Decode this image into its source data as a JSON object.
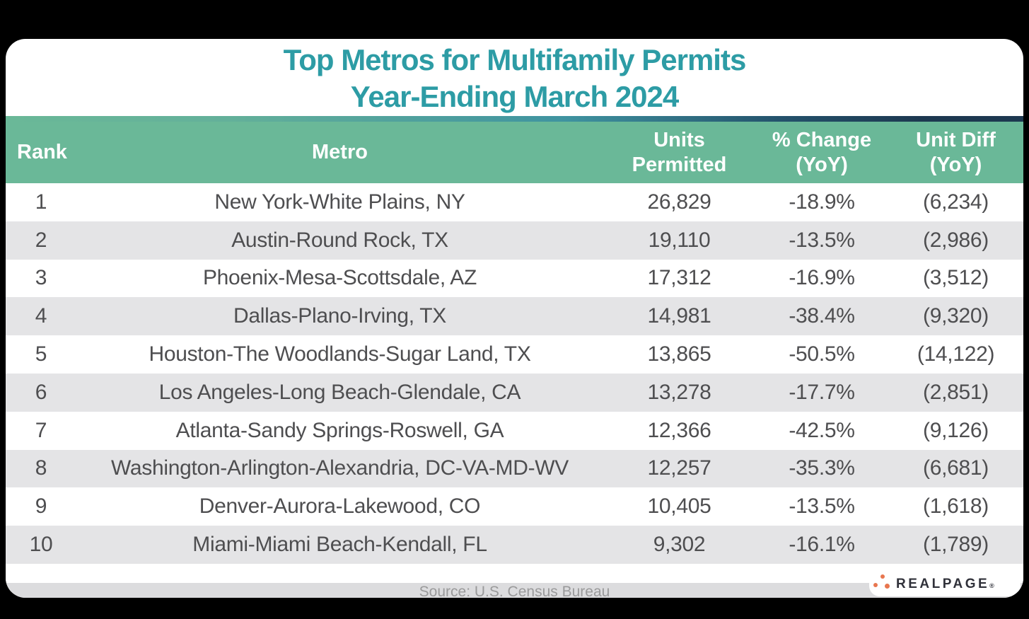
{
  "title": {
    "line1": "Top Metros for Multifamily Permits",
    "line2": "Year-Ending March 2024"
  },
  "table": {
    "header": {
      "rank": "Rank",
      "metro": "Metro",
      "units_line1": "Units",
      "units_line2": "Permitted",
      "change_line1": "% Change",
      "change_line2": "(YoY)",
      "diff_line1": "Unit Diff",
      "diff_line2": "(YoY)"
    },
    "rows": [
      {
        "rank": "1",
        "metro": "New York-White Plains, NY",
        "units": "26,829",
        "change": "-18.9%",
        "diff": "(6,234)"
      },
      {
        "rank": "2",
        "metro": "Austin-Round Rock, TX",
        "units": "19,110",
        "change": "-13.5%",
        "diff": "(2,986)"
      },
      {
        "rank": "3",
        "metro": "Phoenix-Mesa-Scottsdale, AZ",
        "units": "17,312",
        "change": "-16.9%",
        "diff": "(3,512)"
      },
      {
        "rank": "4",
        "metro": "Dallas-Plano-Irving, TX",
        "units": "14,981",
        "change": "-38.4%",
        "diff": "(9,320)"
      },
      {
        "rank": "5",
        "metro": "Houston-The Woodlands-Sugar Land, TX",
        "units": "13,865",
        "change": "-50.5%",
        "diff": "(14,122)"
      },
      {
        "rank": "6",
        "metro": "Los Angeles-Long Beach-Glendale, CA",
        "units": "13,278",
        "change": "-17.7%",
        "diff": "(2,851)"
      },
      {
        "rank": "7",
        "metro": "Atlanta-Sandy Springs-Roswell, GA",
        "units": "12,366",
        "change": "-42.5%",
        "diff": "(9,126)"
      },
      {
        "rank": "8",
        "metro": "Washington-Arlington-Alexandria, DC-VA-MD-WV",
        "units": "12,257",
        "change": "-35.3%",
        "diff": "(6,681)"
      },
      {
        "rank": "9",
        "metro": "Denver-Aurora-Lakewood, CO",
        "units": "10,405",
        "change": "-13.5%",
        "diff": "(1,618)"
      },
      {
        "rank": "10",
        "metro": "Miami-Miami Beach-Kendall, FL",
        "units": "9,302",
        "change": "-16.1%",
        "diff": "(1,789)"
      }
    ]
  },
  "footer": {
    "source": "Source: U.S. Census Bureau",
    "logo_text": "REALPAGE",
    "logo_reg_mark": "®"
  },
  "colors": {
    "background": "#000000",
    "card": "#FFFFFF",
    "title_teal": "#2D9CA5",
    "header_green": "#6AB898",
    "strip_navy": "#1D3850",
    "row_alt_gray": "#E4E4E6",
    "row_text": "#4E4E50",
    "source_bar": "#DCDCDE",
    "source_text": "#9A9A9B",
    "logo_orange": "#E8764F",
    "logo_text_color": "#30313A"
  }
}
